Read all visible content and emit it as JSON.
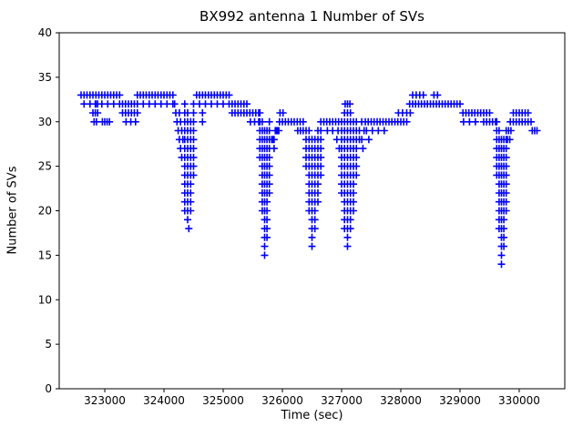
{
  "chart_data": {
    "type": "scatter",
    "title": "BX992 antenna 1 Number of SVs",
    "xlabel": "Time (sec)",
    "ylabel": "Number of SVs",
    "xlim": [
      322230,
      330770
    ],
    "ylim": [
      0,
      40
    ],
    "xticks": [
      323000,
      324000,
      325000,
      326000,
      327000,
      328000,
      329000,
      330000
    ],
    "yticks": [
      0,
      5,
      10,
      15,
      20,
      25,
      30,
      35,
      40
    ],
    "grid": false,
    "legend": "none",
    "background": "#ffffff",
    "axis_color": "#000000",
    "series": [
      {
        "name": "Number of SVs",
        "marker": "+",
        "color": "#0000ff",
        "horizontal_runs": [
          {
            "y": 33,
            "x0": 322600,
            "x1": 323250,
            "dx": 50
          },
          {
            "y": 32,
            "x0": 322650,
            "x1": 323250,
            "dx": 100
          },
          {
            "y": 30,
            "x0": 322960,
            "x1": 323080,
            "dx": 40
          },
          {
            "y": 32,
            "x0": 323300,
            "x1": 323550,
            "dx": 50
          },
          {
            "y": 31,
            "x0": 323300,
            "x1": 323550,
            "dx": 50
          },
          {
            "y": 30,
            "x0": 323360,
            "x1": 323520,
            "dx": 80
          },
          {
            "y": 33,
            "x0": 323550,
            "x1": 324150,
            "dx": 50
          },
          {
            "y": 32,
            "x0": 323650,
            "x1": 324150,
            "dx": 100
          },
          {
            "y": 33,
            "x0": 324550,
            "x1": 325100,
            "dx": 50
          },
          {
            "y": 32,
            "x0": 324600,
            "x1": 325100,
            "dx": 100
          },
          {
            "y": 32,
            "x0": 325150,
            "x1": 325400,
            "dx": 50
          },
          {
            "y": 31,
            "x0": 325150,
            "x1": 325400,
            "dx": 50
          },
          {
            "y": 31,
            "x0": 325450,
            "x1": 325600,
            "dx": 50
          },
          {
            "y": 30,
            "x0": 325460,
            "x1": 325600,
            "dx": 70
          },
          {
            "y": 28,
            "x0": 325820,
            "x1": 325860,
            "dx": 20
          },
          {
            "y": 29,
            "x0": 325880,
            "x1": 325920,
            "dx": 20
          },
          {
            "y": 30,
            "x0": 325950,
            "x1": 326350,
            "dx": 50
          },
          {
            "y": 31,
            "x0": 325960,
            "x1": 326010,
            "dx": 50
          },
          {
            "y": 29,
            "x0": 326260,
            "x1": 326350,
            "dx": 45
          },
          {
            "y": 30,
            "x0": 326700,
            "x1": 326950,
            "dx": 50
          },
          {
            "y": 29,
            "x0": 326760,
            "x1": 326940,
            "dx": 90
          },
          {
            "y": 30,
            "x0": 327450,
            "x1": 327900,
            "dx": 50
          },
          {
            "y": 29,
            "x0": 327520,
            "x1": 327720,
            "dx": 100
          },
          {
            "y": 30,
            "x0": 327950,
            "x1": 328100,
            "dx": 50
          },
          {
            "y": 31,
            "x0": 327960,
            "x1": 328100,
            "dx": 70
          },
          {
            "y": 32,
            "x0": 328150,
            "x1": 328500,
            "dx": 50
          },
          {
            "y": 33,
            "x0": 328200,
            "x1": 328380,
            "dx": 60
          },
          {
            "y": 32,
            "x0": 328550,
            "x1": 329000,
            "dx": 50
          },
          {
            "y": 33,
            "x0": 328560,
            "x1": 328620,
            "dx": 60
          },
          {
            "y": 31,
            "x0": 329050,
            "x1": 329350,
            "dx": 50
          },
          {
            "y": 30,
            "x0": 329060,
            "x1": 329260,
            "dx": 100
          },
          {
            "y": 31,
            "x0": 329400,
            "x1": 329500,
            "dx": 50
          },
          {
            "y": 30,
            "x0": 329400,
            "x1": 329600,
            "dx": 50
          },
          {
            "y": 30,
            "x0": 329850,
            "x1": 330050,
            "dx": 50
          },
          {
            "y": 31,
            "x0": 329900,
            "x1": 330050,
            "dx": 50
          },
          {
            "y": 30,
            "x0": 330100,
            "x1": 330200,
            "dx": 50
          },
          {
            "y": 29,
            "x0": 330220,
            "x1": 330300,
            "dx": 40
          }
        ],
        "vertical_runs": [
          {
            "x": 324350,
            "y0": 20,
            "y1": 32
          },
          {
            "x": 324400,
            "y0": 19,
            "y1": 31
          },
          {
            "x": 324450,
            "y0": 20,
            "y1": 30
          },
          {
            "x": 324500,
            "y0": 24,
            "y1": 32
          },
          {
            "x": 325620,
            "y0": 26,
            "y1": 31
          },
          {
            "x": 325660,
            "y0": 20,
            "y1": 30
          },
          {
            "x": 325700,
            "y0": 15,
            "y1": 29
          },
          {
            "x": 325740,
            "y0": 17,
            "y1": 29
          },
          {
            "x": 325780,
            "y0": 22,
            "y1": 30
          },
          {
            "x": 326400,
            "y0": 25,
            "y1": 29
          },
          {
            "x": 326450,
            "y0": 20,
            "y1": 29
          },
          {
            "x": 326500,
            "y0": 16,
            "y1": 28
          },
          {
            "x": 326550,
            "y0": 18,
            "y1": 28
          },
          {
            "x": 326600,
            "y0": 21,
            "y1": 29
          },
          {
            "x": 326650,
            "y0": 24,
            "y1": 30
          },
          {
            "x": 327000,
            "y0": 22,
            "y1": 30
          },
          {
            "x": 327050,
            "y0": 18,
            "y1": 31
          },
          {
            "x": 327100,
            "y0": 16,
            "y1": 32
          },
          {
            "x": 327150,
            "y0": 18,
            "y1": 31
          },
          {
            "x": 327200,
            "y0": 20,
            "y1": 30
          },
          {
            "x": 327250,
            "y0": 24,
            "y1": 30
          },
          {
            "x": 329620,
            "y0": 24,
            "y1": 30
          },
          {
            "x": 329660,
            "y0": 18,
            "y1": 29
          },
          {
            "x": 329700,
            "y0": 14,
            "y1": 28
          },
          {
            "x": 329740,
            "y0": 16,
            "y1": 28
          },
          {
            "x": 329780,
            "y0": 20,
            "y1": 29
          }
        ],
        "points": [
          [
            322800,
            31
          ],
          [
            322820,
            30
          ],
          [
            322840,
            31
          ],
          [
            322860,
            30
          ],
          [
            322880,
            31
          ],
          [
            322840,
            32
          ],
          [
            322880,
            32
          ],
          [
            324180,
            32
          ],
          [
            324200,
            31
          ],
          [
            324220,
            30
          ],
          [
            324240,
            29
          ],
          [
            324260,
            28
          ],
          [
            324280,
            27
          ],
          [
            324260,
            31
          ],
          [
            324280,
            30
          ],
          [
            324300,
            29
          ],
          [
            324300,
            26
          ],
          [
            324320,
            28
          ],
          [
            324420,
            18
          ],
          [
            324650,
            31
          ],
          [
            324650,
            30
          ],
          [
            325860,
            27
          ],
          [
            325940,
            29
          ],
          [
            326920,
            28
          ],
          [
            326960,
            27
          ],
          [
            327060,
            32
          ],
          [
            327140,
            32
          ],
          [
            327300,
            29
          ],
          [
            327300,
            28
          ],
          [
            327340,
            30
          ],
          [
            327340,
            28
          ],
          [
            327380,
            29
          ],
          [
            327400,
            30
          ],
          [
            327420,
            29
          ],
          [
            327360,
            27
          ],
          [
            327460,
            28
          ],
          [
            328160,
            31
          ],
          [
            329800,
            28
          ],
          [
            329820,
            29
          ],
          [
            329840,
            28
          ],
          [
            329860,
            29
          ],
          [
            330100,
            31
          ],
          [
            330150,
            31
          ]
        ]
      }
    ]
  }
}
